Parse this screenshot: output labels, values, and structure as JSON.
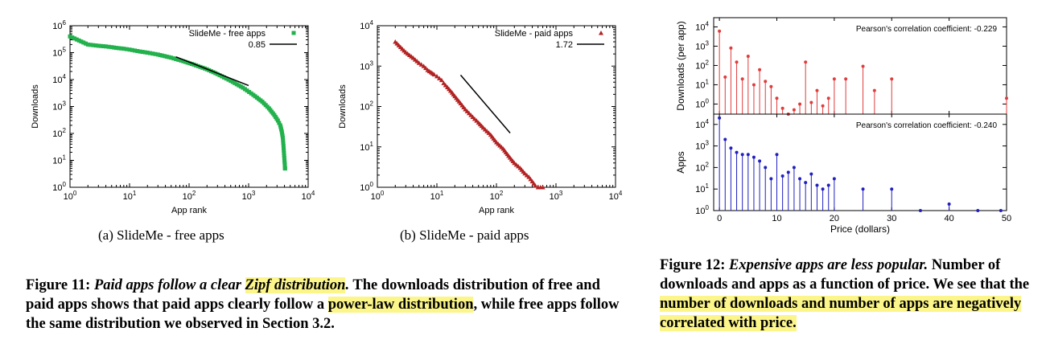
{
  "fig11": {
    "subcaption_a": "(a) SlideMe - free apps",
    "subcaption_b": "(b) SlideMe - paid apps",
    "caption": {
      "label": "Figure 11:",
      "title_pre": "Paid apps follow a clear ",
      "title_hl": "Zipf distribution",
      "title_post": ".",
      "body_1": " The downloads distribution of free and paid apps shows that paid apps clearly follow a ",
      "body_hl": "power-law distribution",
      "body_2": ", while free apps follow the same distribution we observed in Section 3.2."
    }
  },
  "fig12": {
    "caption": {
      "label": "Figure 12:",
      "title": "Expensive apps are less popular.",
      "body_1": " Number of downloads and apps as a function of price. We see that the",
      "body_hl": " number of downloads and number of apps are negatively correlated with price."
    }
  },
  "chart_data": [
    {
      "id": "free",
      "type": "scatter",
      "xlabel": "App rank",
      "ylabel": "Downloads",
      "xscale": "log",
      "yscale": "log",
      "xlim": [
        1,
        10000
      ],
      "ylim": [
        1,
        1000000
      ],
      "x_ticks": [
        1,
        10,
        100,
        1000,
        10000
      ],
      "y_ticks": [
        1,
        10,
        100,
        1000,
        10000,
        100000,
        1000000
      ],
      "x_tick_labels": [
        "10^0",
        "10^1",
        "10^2",
        "10^3",
        "10^4"
      ],
      "y_tick_labels": [
        "10^0",
        "10^1",
        "10^2",
        "10^3",
        "10^4",
        "10^5",
        "10^6"
      ],
      "color": "#22b14c",
      "legend_position": "top-right",
      "series": [
        {
          "name": "SlideMe - free apps",
          "x": [
            1,
            2,
            3,
            4,
            5,
            6,
            8,
            10,
            15,
            20,
            30,
            50,
            80,
            120,
            200,
            300,
            500,
            800,
            1200,
            1700,
            2200,
            2700,
            3100,
            3400,
            3600,
            3750,
            3850,
            3950,
            4000,
            4050,
            4080,
            4100
          ],
          "y": [
            400000,
            200000,
            180000,
            170000,
            160000,
            150000,
            140000,
            130000,
            110000,
            100000,
            85000,
            65000,
            48000,
            36000,
            24000,
            16000,
            9000,
            5000,
            2700,
            1500,
            850,
            480,
            300,
            200,
            120,
            70,
            35,
            15,
            10,
            7,
            5,
            5
          ]
        }
      ],
      "fit": {
        "name": "0.85",
        "x": [
          60,
          1000
        ],
        "y": [
          70000,
          6000
        ]
      }
    },
    {
      "id": "paid",
      "type": "scatter",
      "xlabel": "App rank",
      "ylabel": "Downloads",
      "xscale": "log",
      "yscale": "log",
      "xlim": [
        1,
        10000
      ],
      "ylim": [
        1,
        10000
      ],
      "x_ticks": [
        1,
        10,
        100,
        1000,
        10000
      ],
      "y_ticks": [
        1,
        10,
        100,
        1000,
        10000
      ],
      "x_tick_labels": [
        "10^0",
        "10^1",
        "10^2",
        "10^3",
        "10^4"
      ],
      "y_tick_labels": [
        "10^0",
        "10^1",
        "10^2",
        "10^3",
        "10^4"
      ],
      "color": "#b22222",
      "legend_position": "top-right",
      "series": [
        {
          "name": "SlideMe - paid apps",
          "x": [
            2,
            3,
            4,
            5,
            6,
            7,
            8,
            9,
            10,
            11,
            12,
            13,
            15,
            18,
            20,
            25,
            30,
            40,
            50,
            60,
            80,
            100,
            130,
            160,
            200,
            250,
            300,
            350,
            400,
            450,
            500,
            550,
            600
          ],
          "y": [
            4000,
            2200,
            1600,
            1200,
            1000,
            800,
            700,
            620,
            560,
            500,
            450,
            380,
            300,
            220,
            180,
            120,
            85,
            55,
            40,
            30,
            20,
            13,
            9,
            6,
            4,
            3,
            2.2,
            1.8,
            1.4,
            1.1,
            1,
            1,
            1
          ]
        }
      ],
      "fit": {
        "name": "1.72",
        "x": [
          25,
          170
        ],
        "y": [
          600,
          22
        ]
      }
    },
    {
      "id": "price_downloads",
      "type": "bar",
      "ylabel": "Downloads (per app)",
      "yscale": "log",
      "ylim": [
        0.3,
        30000
      ],
      "y_ticks": [
        1,
        10,
        100,
        1000,
        10000
      ],
      "y_tick_labels": [
        "10^0",
        "10^1",
        "10^2",
        "10^3",
        "10^4"
      ],
      "color": "#e03c3c",
      "annotation": "Pearson's correlation coefficient: -0.229",
      "x": [
        0,
        1,
        2,
        3,
        4,
        5,
        6,
        7,
        8,
        9,
        10,
        11,
        12,
        13,
        14,
        15,
        16,
        17,
        18,
        19,
        20,
        22,
        25,
        27,
        30,
        50
      ],
      "values": [
        6000,
        25,
        800,
        150,
        20,
        300,
        10,
        60,
        15,
        8,
        2,
        0.6,
        0.3,
        0.5,
        1,
        150,
        1.2,
        5,
        0.8,
        2,
        20,
        20,
        90,
        5,
        20,
        2
      ]
    },
    {
      "id": "price_apps",
      "type": "bar",
      "xlabel": "Price (dollars)",
      "ylabel": "Apps",
      "yscale": "log",
      "xlim": [
        -1,
        50
      ],
      "ylim": [
        1,
        30000
      ],
      "x_ticks": [
        0,
        10,
        20,
        30,
        40,
        50
      ],
      "y_ticks": [
        1,
        10,
        100,
        1000,
        10000
      ],
      "y_tick_labels": [
        "10^0",
        "10^1",
        "10^2",
        "10^3",
        "10^4"
      ],
      "color": "#2020c0",
      "annotation": "Pearson's correlation coefficient: -0.240",
      "x": [
        0,
        1,
        2,
        3,
        4,
        5,
        6,
        7,
        8,
        9,
        10,
        11,
        12,
        13,
        14,
        15,
        16,
        17,
        18,
        19,
        20,
        25,
        30,
        35,
        40,
        45,
        49
      ],
      "values": [
        20000,
        2000,
        800,
        500,
        400,
        400,
        300,
        200,
        100,
        30,
        400,
        40,
        60,
        100,
        30,
        20,
        50,
        15,
        10,
        15,
        30,
        10,
        10,
        1,
        2,
        1,
        1
      ]
    }
  ]
}
